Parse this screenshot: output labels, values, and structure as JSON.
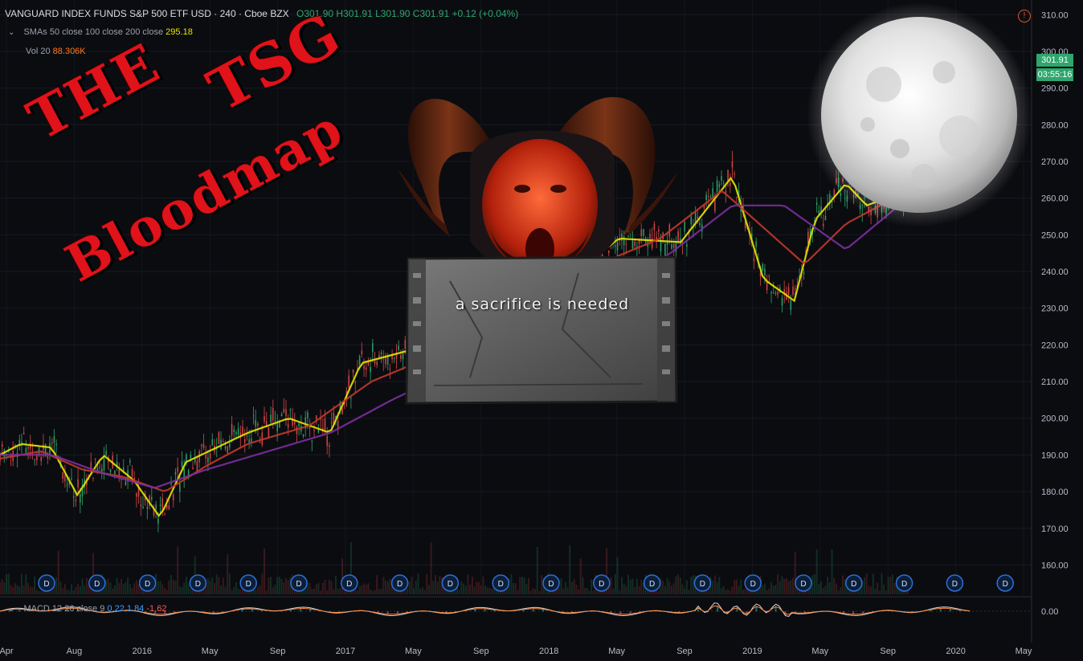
{
  "header": {
    "symbol": "VANGUARD INDEX FUNDS S&P 500 ETF USD · 240 · Cboe BZX",
    "ohlc": "O301.90  H301.91  L301.90  C301.91  +0.12 (+0.04%)"
  },
  "indicators": {
    "sma_label": "SMAs 50 close 100 close 200 close",
    "sma_value": "295.18",
    "vol_label": "Vol 20",
    "vol_value": "88.306K",
    "macd_label": "MACD 12 26 close 9",
    "macd_v1": "0.22",
    "macd_v2": "1.84",
    "macd_v3": "-1.62"
  },
  "price_tag": {
    "price": "301.91",
    "countdown": "03:55:16"
  },
  "overlay_text": {
    "title_the": "THE",
    "title_tsg": "TSG",
    "title_bloodmap": "Bloodmap",
    "tablet": "a sacrifice is needed"
  },
  "colors": {
    "background": "#0b0c10",
    "up": "#2ea66d",
    "down": "#d94848",
    "sma50": "#e6e600",
    "sma100": "#c0392b",
    "sma200": "#7b2fa0",
    "title_red": "#e0121a"
  },
  "chart_data": {
    "type": "line",
    "ylim": [
      152,
      314
    ],
    "yticks": [
      "310.00",
      "300.00",
      "290.00",
      "280.00",
      "270.00",
      "260.00",
      "250.00",
      "240.00",
      "230.00",
      "220.00",
      "210.00",
      "200.00",
      "190.00",
      "180.00",
      "170.00",
      "160.00"
    ],
    "xticks": [
      "Apr",
      "Aug",
      "2016",
      "May",
      "Sep",
      "2017",
      "May",
      "Sep",
      "2018",
      "May",
      "Sep",
      "2019",
      "May",
      "Sep",
      "2020",
      "May"
    ],
    "macd_tick": "0.00",
    "dividend_marker": "D",
    "dividend_count": 20,
    "series": [
      {
        "name": "SMA 50",
        "color": "#e6e600",
        "x": [
          0,
          0.02,
          0.05,
          0.075,
          0.1,
          0.13,
          0.155,
          0.18,
          0.21,
          0.24,
          0.28,
          0.32,
          0.35,
          0.39,
          0.45,
          0.52,
          0.55,
          0.6,
          0.66,
          0.71,
          0.74,
          0.77,
          0.79,
          0.82,
          0.84,
          0.88
        ],
        "values": [
          190,
          193,
          192,
          179,
          190,
          183,
          173,
          188,
          192,
          196,
          200,
          196,
          215,
          218,
          222,
          232,
          238,
          249,
          248,
          266,
          238,
          232,
          254,
          264,
          258,
          262
        ]
      },
      {
        "name": "SMA 100",
        "color": "#c0392b",
        "x": [
          0,
          0.04,
          0.08,
          0.12,
          0.16,
          0.2,
          0.24,
          0.3,
          0.36,
          0.42,
          0.5,
          0.58,
          0.64,
          0.7,
          0.74,
          0.78,
          0.82,
          0.88
        ],
        "values": [
          189,
          191,
          186,
          184,
          180,
          187,
          193,
          198,
          210,
          217,
          228,
          242,
          249,
          262,
          252,
          242,
          253,
          262
        ]
      },
      {
        "name": "SMA 200",
        "color": "#7b2fa0",
        "x": [
          0,
          0.05,
          0.1,
          0.15,
          0.2,
          0.26,
          0.32,
          0.38,
          0.44,
          0.5,
          0.58,
          0.65,
          0.71,
          0.76,
          0.82,
          0.88
        ],
        "values": [
          190,
          190,
          185,
          181,
          186,
          191,
          196,
          205,
          213,
          222,
          234,
          245,
          258,
          258,
          246,
          260
        ]
      }
    ]
  }
}
